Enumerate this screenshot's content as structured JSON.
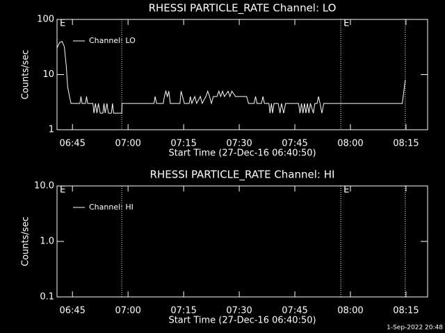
{
  "chart_data": [
    {
      "type": "line",
      "title": "RHESSI PARTICLE_RATE Channel: LO",
      "ylabel": "Counts/sec",
      "xlabel": "Start Time (27-Dec-16 06:40:50)",
      "ylog": true,
      "ylim": [
        1,
        100
      ],
      "yticks": [
        1,
        10,
        100
      ],
      "xlim": [
        400.83,
        500.83
      ],
      "xticks": [
        {
          "value": 405,
          "label": "06:45"
        },
        {
          "value": 420,
          "label": "07:00"
        },
        {
          "value": 435,
          "label": "07:15"
        },
        {
          "value": 450,
          "label": "07:30"
        },
        {
          "value": 465,
          "label": "07:45"
        },
        {
          "value": 480,
          "label": "08:00"
        },
        {
          "value": 495,
          "label": "08:15"
        }
      ],
      "event_lines": [
        418.3,
        477.4,
        494.8
      ],
      "annotations": [
        {
          "text": "E",
          "x": 400.83
        },
        {
          "text": "E",
          "x": 477.4
        }
      ],
      "legend": "upper left",
      "x": [
        400.8,
        401.5,
        402.2,
        402.8,
        403.3,
        403.7,
        404.2,
        404.6,
        407,
        407.3,
        407.6,
        408.5,
        408.8,
        409.1,
        410.5,
        410.8,
        411.2,
        411.6,
        412,
        412.5,
        413.2,
        413.5,
        413.8,
        414.3,
        414.7,
        415.5,
        415.8,
        416.1,
        418.3,
        418.4,
        427,
        427.3,
        427.7,
        429.5,
        429.8,
        430.2,
        430.6,
        431,
        431.4,
        434,
        434.3,
        434.7,
        435.2,
        436.5,
        436.8,
        437.2,
        438,
        438.5,
        439.5,
        440,
        441,
        441.5,
        442,
        442.5,
        443,
        444,
        444.5,
        445,
        445.5,
        446,
        447,
        447.5,
        448,
        449,
        452,
        452.5,
        454,
        454.4,
        454.8,
        456,
        456.4,
        456.8,
        458,
        458.3,
        458.7,
        459,
        459.4,
        460.5,
        461,
        461.4,
        462,
        462.5,
        466,
        466.4,
        466.8,
        467.2,
        467.6,
        468,
        468.4,
        468.8,
        469.2,
        470,
        470.4,
        471,
        471.4,
        471.8,
        472.3,
        472.8,
        494,
        494.8
      ],
      "series": [
        {
          "name": "Channel: LO",
          "color": "#ffffff",
          "values": [
            30,
            38,
            40,
            32,
            15,
            6,
            4,
            3,
            3,
            4,
            3,
            3,
            4,
            3,
            3,
            2,
            3,
            2,
            3,
            2,
            2,
            3,
            2,
            3,
            2,
            2,
            3,
            2,
            2,
            3,
            3,
            4,
            3,
            3,
            4,
            5,
            4,
            5,
            3,
            3,
            5,
            4,
            3,
            3,
            4,
            3,
            4,
            3,
            4,
            3,
            4,
            5,
            4,
            3,
            4,
            4,
            5,
            4,
            5,
            4,
            5,
            4,
            5,
            4,
            4,
            3,
            3,
            4,
            3,
            3,
            4,
            3,
            3,
            2,
            3,
            2,
            3,
            3,
            2,
            3,
            2,
            3,
            3,
            2,
            3,
            2,
            3,
            2,
            3,
            2,
            3,
            2,
            3,
            3,
            4,
            3,
            2,
            3,
            3,
            8
          ]
        }
      ]
    },
    {
      "type": "line",
      "title": "RHESSI PARTICLE_RATE Channel: HI",
      "ylabel": "Counts/sec",
      "xlabel": "Start Time (27-Dec-16 06:40:50)",
      "ylog": true,
      "ylim": [
        0.1,
        10
      ],
      "yticks": [
        0.1,
        {
          "value": 1,
          "label": "1.0"
        },
        {
          "value": 10,
          "label": "10.0"
        }
      ],
      "xlim": [
        400.83,
        500.83
      ],
      "xticks": [
        {
          "value": 405,
          "label": "06:45"
        },
        {
          "value": 420,
          "label": "07:00"
        },
        {
          "value": 435,
          "label": "07:15"
        },
        {
          "value": 450,
          "label": "07:30"
        },
        {
          "value": 465,
          "label": "07:45"
        },
        {
          "value": 480,
          "label": "08:00"
        },
        {
          "value": 495,
          "label": "08:15"
        }
      ],
      "event_lines": [
        418.3,
        477.4,
        494.8
      ],
      "annotations": [
        {
          "text": "E",
          "x": 400.83
        },
        {
          "text": "E",
          "x": 477.4
        }
      ],
      "legend": "upper left",
      "x": [],
      "series": [
        {
          "name": "Channel: HI",
          "color": "#ffffff",
          "values": []
        }
      ]
    }
  ],
  "footer": "1-Sep-2022 20:48"
}
